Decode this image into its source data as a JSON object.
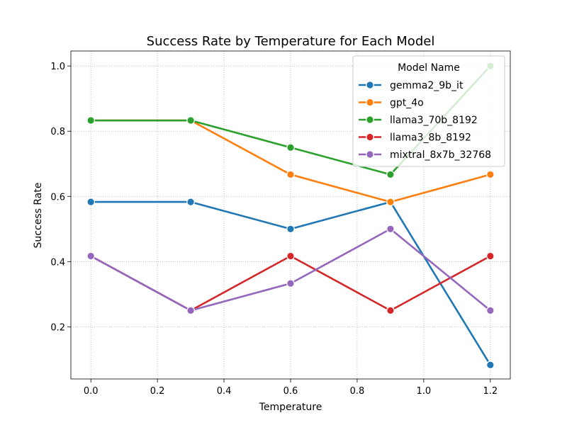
{
  "chart_data": {
    "type": "line",
    "title": "Success Rate by Temperature for Each Model",
    "xlabel": "Temperature",
    "ylabel": "Success Rate",
    "xlim": [
      -0.06,
      1.26
    ],
    "ylim": [
      0.04,
      1.046
    ],
    "x_ticks": [
      0.0,
      0.2,
      0.4,
      0.6,
      0.8,
      1.0,
      1.2
    ],
    "y_ticks": [
      0.2,
      0.4,
      0.6,
      0.8,
      1.0
    ],
    "grid": true,
    "grid_style": "dotted",
    "legend_title": "Model Name",
    "legend_position": "top-right",
    "series": [
      {
        "name": "gemma2_9b_it",
        "color": "#1f77b4",
        "x": [
          0.0,
          0.3,
          0.6,
          0.9,
          1.2
        ],
        "values": [
          0.583,
          0.583,
          0.5,
          0.583,
          0.083
        ]
      },
      {
        "name": "gpt_4o",
        "color": "#ff7f0e",
        "x": [
          0.0,
          0.3,
          0.6,
          0.9,
          1.2
        ],
        "values": [
          0.833,
          0.833,
          0.667,
          0.583,
          0.667
        ]
      },
      {
        "name": "llama3_70b_8192",
        "color": "#2ca02c",
        "x": [
          0.0,
          0.3,
          0.6,
          0.9,
          1.2
        ],
        "values": [
          0.833,
          0.833,
          0.75,
          0.667,
          1.0
        ]
      },
      {
        "name": "llama3_8b_8192",
        "color": "#d62728",
        "x": [
          0.0,
          0.3,
          0.6,
          0.9,
          1.2
        ],
        "values": [
          0.417,
          0.25,
          0.417,
          0.25,
          0.417
        ]
      },
      {
        "name": "mixtral_8x7b_32768",
        "color": "#9467bd",
        "x": [
          0.0,
          0.3,
          0.6,
          0.9,
          1.2
        ],
        "values": [
          0.417,
          0.25,
          0.333,
          0.5,
          0.25
        ]
      }
    ]
  }
}
